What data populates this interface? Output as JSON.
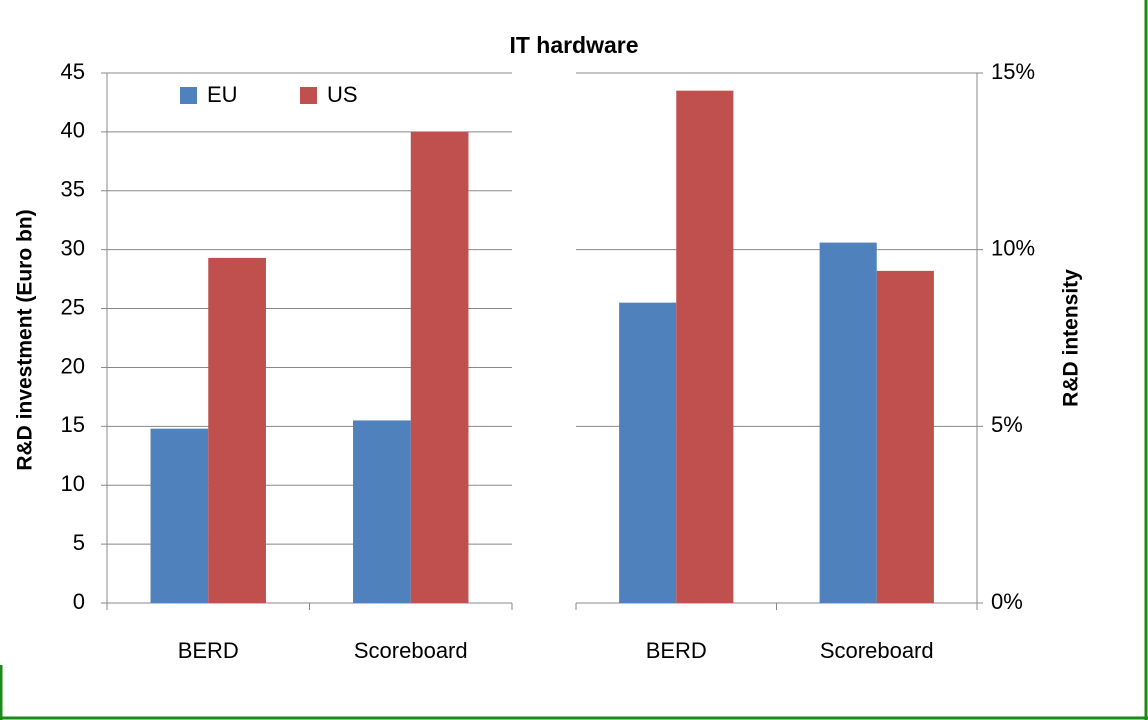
{
  "chart_data": [
    {
      "type": "bar",
      "title": "IT hardware",
      "ylabel": "R&D investment (Euro bn)",
      "categories": [
        "BERD",
        "Scoreboard"
      ],
      "series": [
        {
          "name": "EU",
          "color": "#4f81bd",
          "values": [
            14.8,
            15.5
          ]
        },
        {
          "name": "US",
          "color": "#c0504d",
          "values": [
            29.3,
            40
          ]
        }
      ],
      "ylim": [
        0,
        45
      ],
      "yticks": [
        0,
        5,
        10,
        15,
        20,
        25,
        30,
        35,
        40,
        45
      ],
      "grid": true,
      "legend": "top"
    },
    {
      "type": "bar",
      "y2label": "R&D intensity",
      "categories": [
        "BERD",
        "Scoreboard"
      ],
      "series": [
        {
          "color": "#4f81bd",
          "axis": "y2",
          "values": [
            8.5,
            10.2
          ]
        },
        {
          "color": "#c0504d",
          "axis": "y2",
          "values": [
            14.5,
            9.4
          ]
        }
      ],
      "y2lim": [
        0,
        15
      ],
      "y2ticks": [
        {
          "value": 0,
          "label": "0%"
        },
        {
          "value": 5,
          "label": "5%"
        },
        {
          "value": 10,
          "label": "10%"
        },
        {
          "value": 15,
          "label": "15%"
        }
      ],
      "grid": true
    }
  ]
}
